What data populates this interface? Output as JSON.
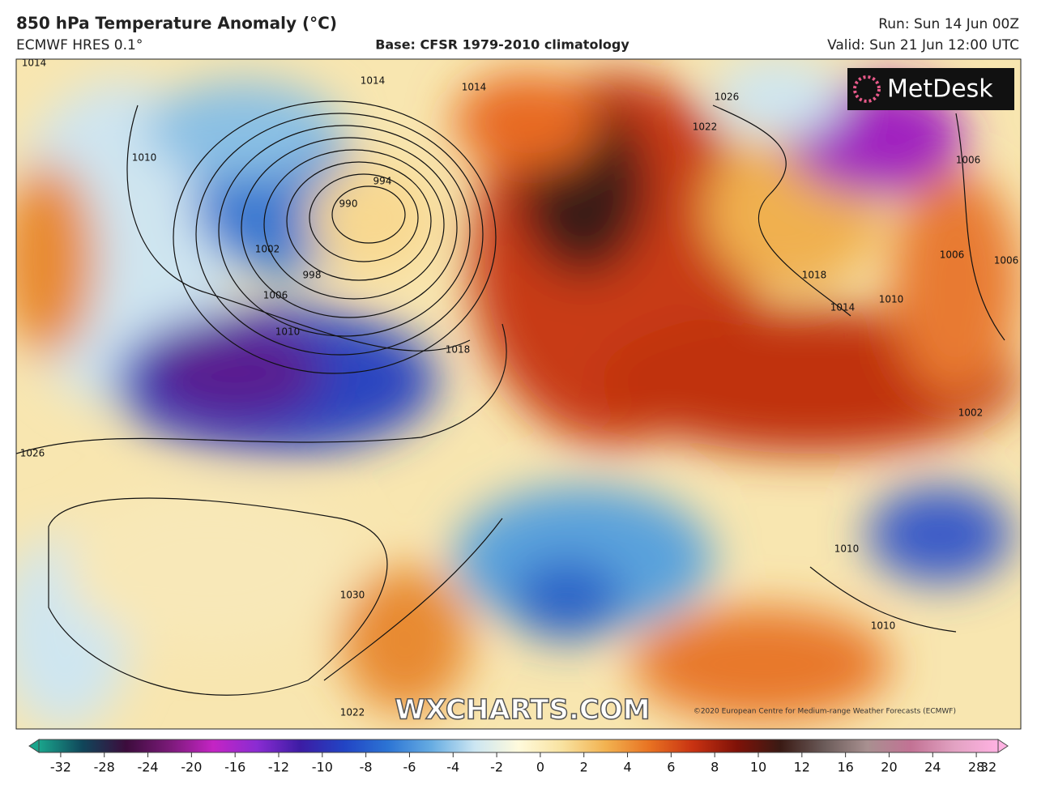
{
  "header": {
    "title": "850 hPa Temperature Anomaly (°C)",
    "model": "ECMWF HRES 0.1°",
    "base": "Base: CFSR 1979-2010 climatology",
    "run": "Run: Sun 14 Jun 00Z",
    "valid": "Valid: Sun 21 Jun 12:00 UTC"
  },
  "logo": "MetDesk",
  "watermark": "WXCHARTS.COM",
  "copyright": "©2020 European Centre for Medium-range Weather Forecasts (ECMWF)",
  "isobar_labels": [
    "1014",
    "1014",
    "1026",
    "1022",
    "994",
    "990",
    "1002",
    "998",
    "1006",
    "1010",
    "1018",
    "1010",
    "1018",
    "1014",
    "1010",
    "1006",
    "1006",
    "1006",
    "1026",
    "1030",
    "1002",
    "1010",
    "1010",
    "1022",
    "1014"
  ],
  "colorbar": {
    "ticks": [
      -32,
      -28,
      -24,
      -20,
      -16,
      -12,
      -10,
      -8,
      -6,
      -4,
      -2,
      0,
      2,
      4,
      6,
      8,
      10,
      12,
      16,
      20,
      24,
      28,
      32
    ],
    "colors": [
      "#1aa58c",
      "#10465a",
      "#3c0c3c",
      "#7a1a78",
      "#c424c4",
      "#8a2cd2",
      "#3c1ca4",
      "#2244c4",
      "#2c74d4",
      "#66acE2",
      "#cce6f2",
      "#fffadc",
      "#f8e2a0",
      "#f2b250",
      "#e87222",
      "#c83212",
      "#801208",
      "#3a1a14",
      "#6a5a58",
      "#a89090",
      "#c27294",
      "#e2a2c2",
      "#ffb2e2"
    ]
  }
}
